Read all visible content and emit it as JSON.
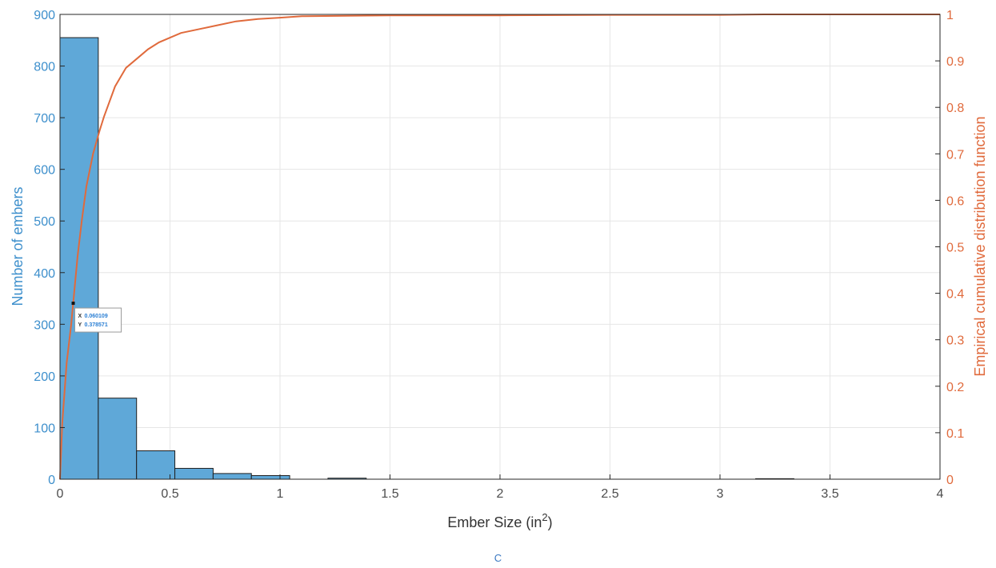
{
  "chart_data": {
    "type": "bar",
    "subtype": "histogram with empirical CDF overlay",
    "xlabel_prefix": "Ember Size (in",
    "xlabel_sup": "2",
    "xlabel_suffix": ")",
    "ylabel_left": "Number of embers",
    "ylabel_right": "Empirical cumulative distribution function",
    "xlim": [
      0,
      4
    ],
    "ylim_left": [
      0,
      900
    ],
    "ylim_right": [
      0,
      1
    ],
    "x_ticks": [
      "0",
      "0.5",
      "1",
      "1.5",
      "2",
      "2.5",
      "3",
      "3.5",
      "4"
    ],
    "y_left_ticks": [
      "0",
      "100",
      "200",
      "300",
      "400",
      "500",
      "600",
      "700",
      "800",
      "900"
    ],
    "y_right_ticks": [
      "0",
      "0.1",
      "0.2",
      "0.3",
      "0.4",
      "0.5",
      "0.6",
      "0.7",
      "0.8",
      "0.9",
      "1"
    ],
    "grid": true,
    "bin_width": 0.174,
    "bins": [
      {
        "x0": 0.0,
        "count": 855
      },
      {
        "x0": 0.174,
        "count": 157
      },
      {
        "x0": 0.348,
        "count": 55
      },
      {
        "x0": 0.522,
        "count": 21
      },
      {
        "x0": 0.696,
        "count": 11
      },
      {
        "x0": 0.87,
        "count": 7
      },
      {
        "x0": 1.044,
        "count": 0
      },
      {
        "x0": 1.218,
        "count": 2
      },
      {
        "x0": 1.392,
        "count": 0
      },
      {
        "x0": 3.162,
        "count": 1
      }
    ],
    "cdf": {
      "x": [
        0,
        0.01,
        0.03,
        0.05,
        0.06,
        0.08,
        0.1,
        0.12,
        0.15,
        0.18,
        0.2,
        0.25,
        0.3,
        0.35,
        0.4,
        0.45,
        0.5,
        0.55,
        0.6,
        0.7,
        0.8,
        0.9,
        1.0,
        1.1,
        1.3,
        1.5,
        2.0,
        2.5,
        3.0,
        3.2,
        4.0
      ],
      "y": [
        0,
        0.12,
        0.25,
        0.33,
        0.379,
        0.48,
        0.56,
        0.63,
        0.7,
        0.75,
        0.78,
        0.845,
        0.885,
        0.905,
        0.925,
        0.94,
        0.95,
        0.96,
        0.965,
        0.975,
        0.985,
        0.99,
        0.993,
        0.996,
        0.997,
        0.998,
        0.998,
        0.999,
        0.999,
        1.0,
        1.0
      ]
    },
    "datatip": {
      "x": 0.060109,
      "y": 0.378571,
      "x_text": "0.060109",
      "y_text": "0.378571",
      "x_label": "X",
      "y_label": "Y"
    },
    "colors": {
      "bars": "#5fa8d8",
      "bar_edge": "#1f1f1f",
      "cdf": "#e06a3c",
      "left_axis": "#3d8fcc",
      "right_axis": "#e06a3c",
      "grid": "#e6e6e6"
    }
  },
  "caption": "C"
}
